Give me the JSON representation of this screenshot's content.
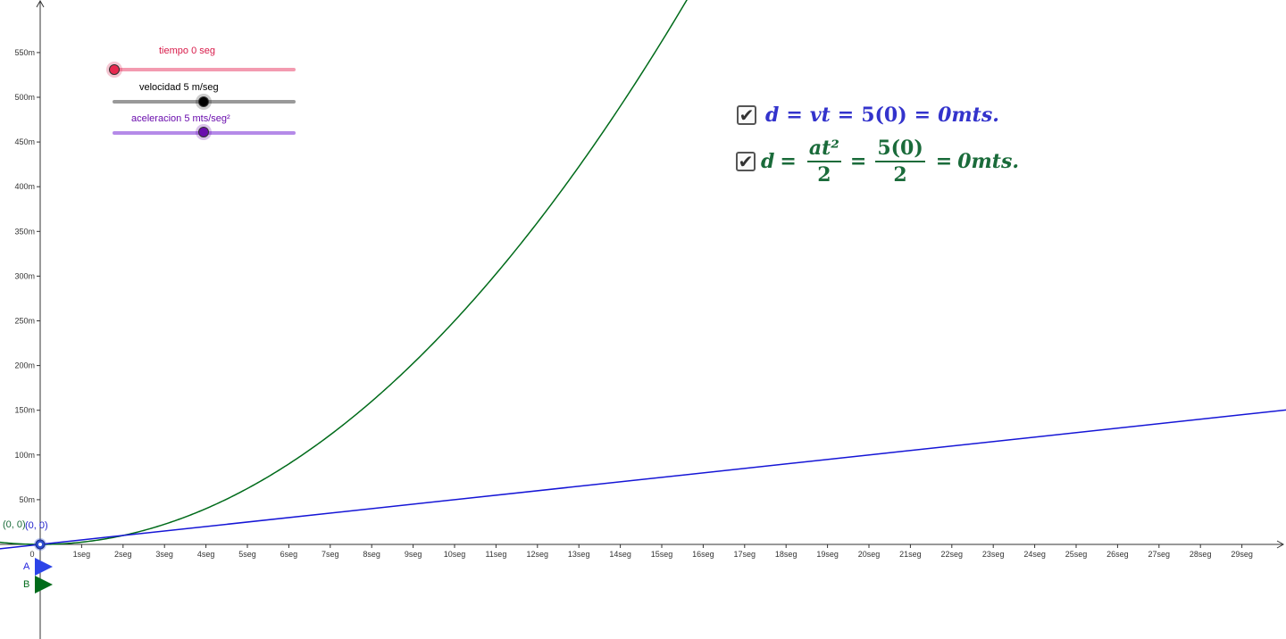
{
  "graph": {
    "x_labels": [
      "0",
      "1seg",
      "2seg",
      "3seg",
      "4seg",
      "5seg",
      "6seg",
      "7seg",
      "8seg",
      "9seg",
      "10seg",
      "11seg",
      "12seg",
      "13seg",
      "14seg",
      "15seg",
      "16seg",
      "17seg",
      "18seg",
      "19seg",
      "20seg",
      "21seg",
      "22seg",
      "23seg",
      "24seg",
      "25seg",
      "26seg",
      "27seg",
      "28seg",
      "29seg"
    ],
    "y_labels": [
      "50m",
      "100m",
      "150m",
      "200m",
      "250m",
      "300m",
      "350m",
      "400m",
      "450m",
      "500m",
      "550m"
    ],
    "colors": {
      "blue": "#1515d6",
      "green": "#006b1a",
      "axis": "#333333"
    }
  },
  "sliders": {
    "tiempo": {
      "label": "tiempo 0 seg",
      "value": 0,
      "min": 0,
      "max": 20,
      "color": "#d81b4a",
      "track": "#f39bb0"
    },
    "velocidad": {
      "label": "velocidad 5 m/seg",
      "value": 5,
      "min": 0,
      "max": 10,
      "color": "#000000",
      "track": "#999999"
    },
    "aceleracion": {
      "label": "aceleracion 5  mts/seg²",
      "value": 5,
      "min": 0,
      "max": 10,
      "color": "#6a0dad",
      "track": "#b58ae8"
    }
  },
  "formula1": {
    "checked": "✔",
    "text": {
      "d": "d",
      "eq1": "=",
      "vt": "vt",
      "eq2": "=",
      "val": "5(0)",
      "eq3": "=",
      "result": "0mts."
    },
    "color": "#3333cc"
  },
  "formula2": {
    "checked": "✔",
    "text": {
      "d": "d",
      "eq1": "=",
      "num1": "at²",
      "den1": "2",
      "eq2": "=",
      "num2": "5(0)",
      "den2": "2",
      "eq3": "=",
      "result": "0mts."
    },
    "color": "#1a6b3a"
  },
  "buttons": {
    "a_label": "A",
    "b_label": "B"
  },
  "points": {
    "green_label": "(0, 0)",
    "blue_label": "(0, 0)"
  }
}
